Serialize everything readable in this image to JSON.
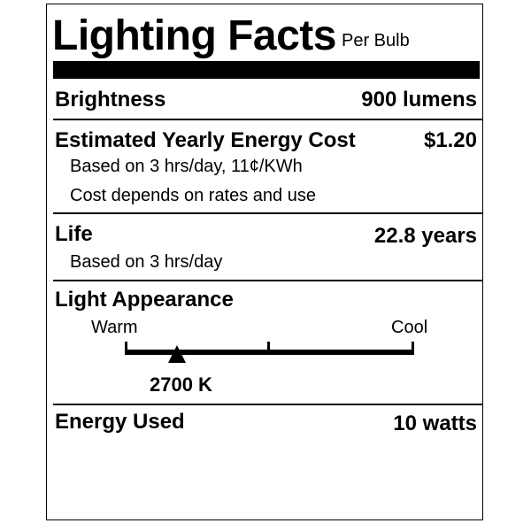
{
  "header": {
    "title": "Lighting Facts",
    "subtitle": "Per Bulb"
  },
  "brightness": {
    "label": "Brightness",
    "value": "900 lumens"
  },
  "energy_cost": {
    "label": "Estimated Yearly Energy Cost",
    "value": "$1.20",
    "note1": "Based on 3 hrs/day, 11¢/KWh",
    "note2": "Cost depends on rates and use"
  },
  "life": {
    "label": "Life",
    "value": "22.8 years",
    "note": "Based on 3 hrs/day"
  },
  "light_appearance": {
    "label": "Light Appearance",
    "warm_label": "Warm",
    "cool_label": "Cool",
    "value": "2700 K",
    "scale_position_fraction": 0.18
  },
  "energy_used": {
    "label": "Energy Used",
    "value": "10 watts"
  }
}
